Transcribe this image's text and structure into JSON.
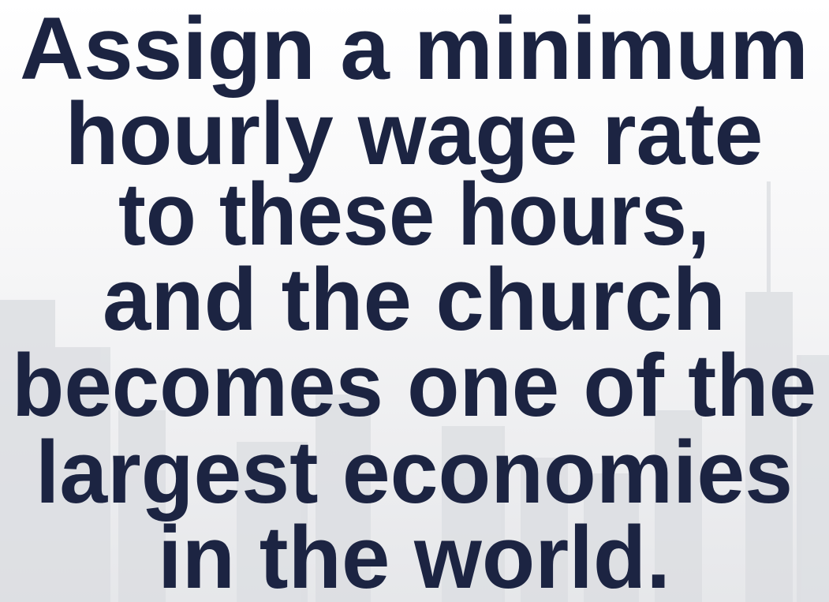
{
  "quote": {
    "lines": [
      "Assign a minimum",
      "hourly wage rate",
      "to these hours,",
      "and the church",
      "becomes one of the",
      "largest economies",
      "in the world."
    ]
  }
}
